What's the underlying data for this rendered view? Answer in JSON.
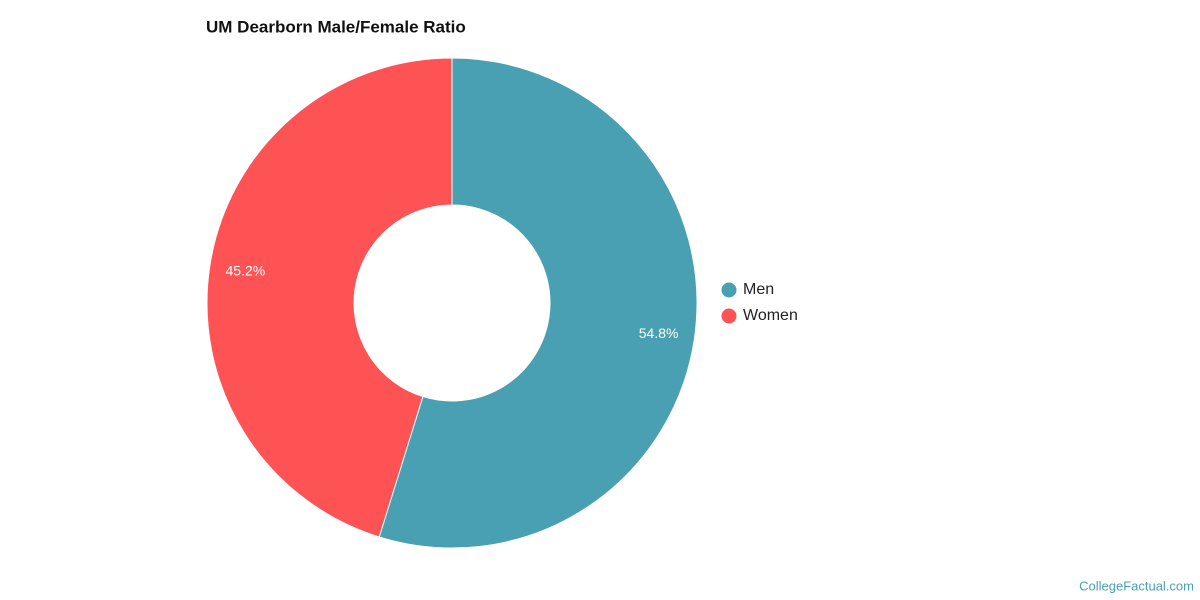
{
  "chart_data": {
    "type": "pie",
    "title": "UM Dearborn Male/Female Ratio",
    "categories": [
      "Men",
      "Women"
    ],
    "values": [
      54.8,
      45.2
    ],
    "value_labels": [
      "54.8%",
      "45.2%"
    ],
    "colors": [
      "#4aa0b3",
      "#fe5355"
    ],
    "legend": "right"
  },
  "credit": "CollegeFactual.com"
}
